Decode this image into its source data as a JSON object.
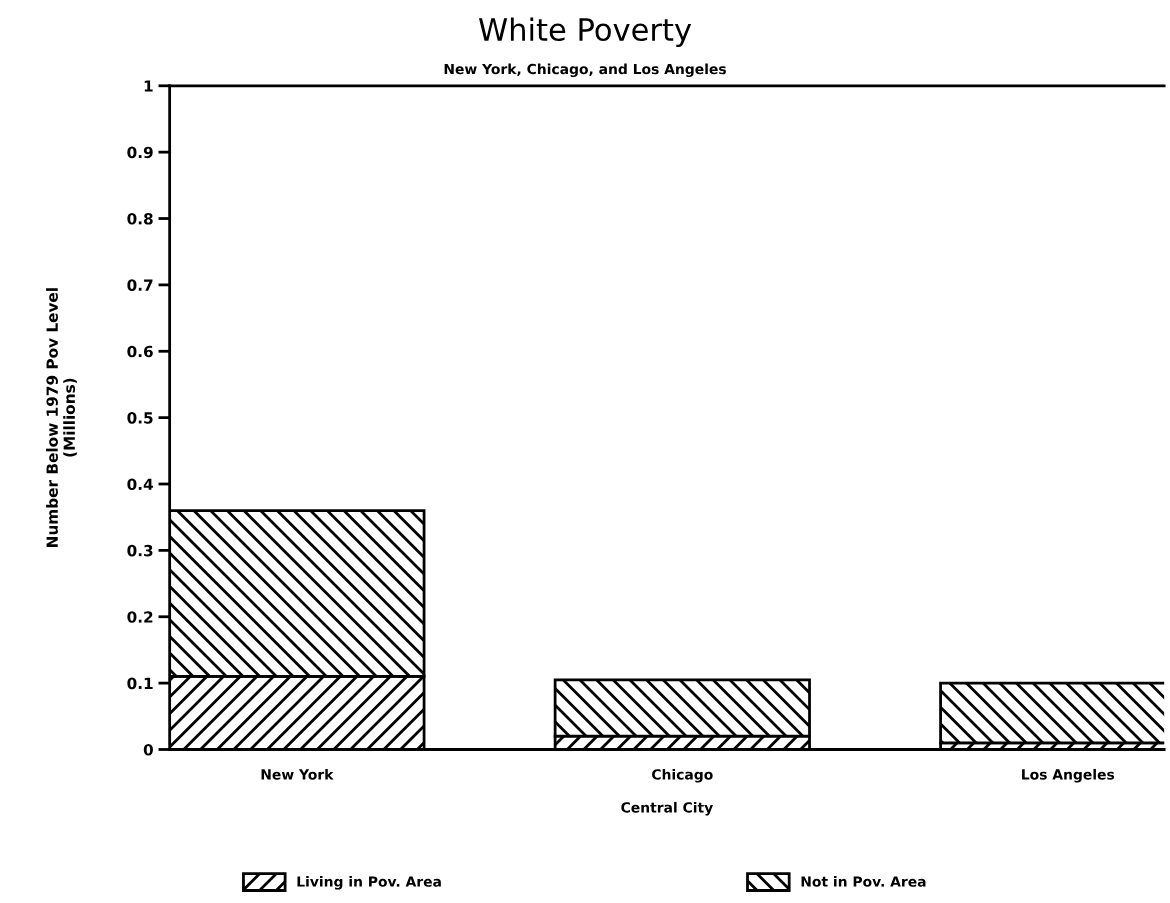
{
  "chart_data": {
    "type": "bar",
    "title": "White Poverty",
    "subtitle": "New York, Chicago, and Los Angeles",
    "xlabel": "Central City",
    "ylabel": "Number Below 1979 Pov Level\n(Millions)",
    "categories": [
      "New York",
      "Chicago",
      "Los Angeles"
    ],
    "series": [
      {
        "name": "Living in Pov. Area",
        "color": "#000000",
        "values": [
          0.11,
          0.02,
          0.01
        ]
      },
      {
        "name": "Not in Pov. Area",
        "color": "#000000",
        "values": [
          0.25,
          0.085,
          0.09
        ]
      }
    ],
    "stacked": true,
    "ylim": [
      0,
      1
    ],
    "yticks": [
      0,
      0.1,
      0.2,
      0.3,
      0.4,
      0.5,
      0.6,
      0.7,
      0.8,
      0.9,
      1
    ],
    "grid": false,
    "legend": "bottom"
  }
}
